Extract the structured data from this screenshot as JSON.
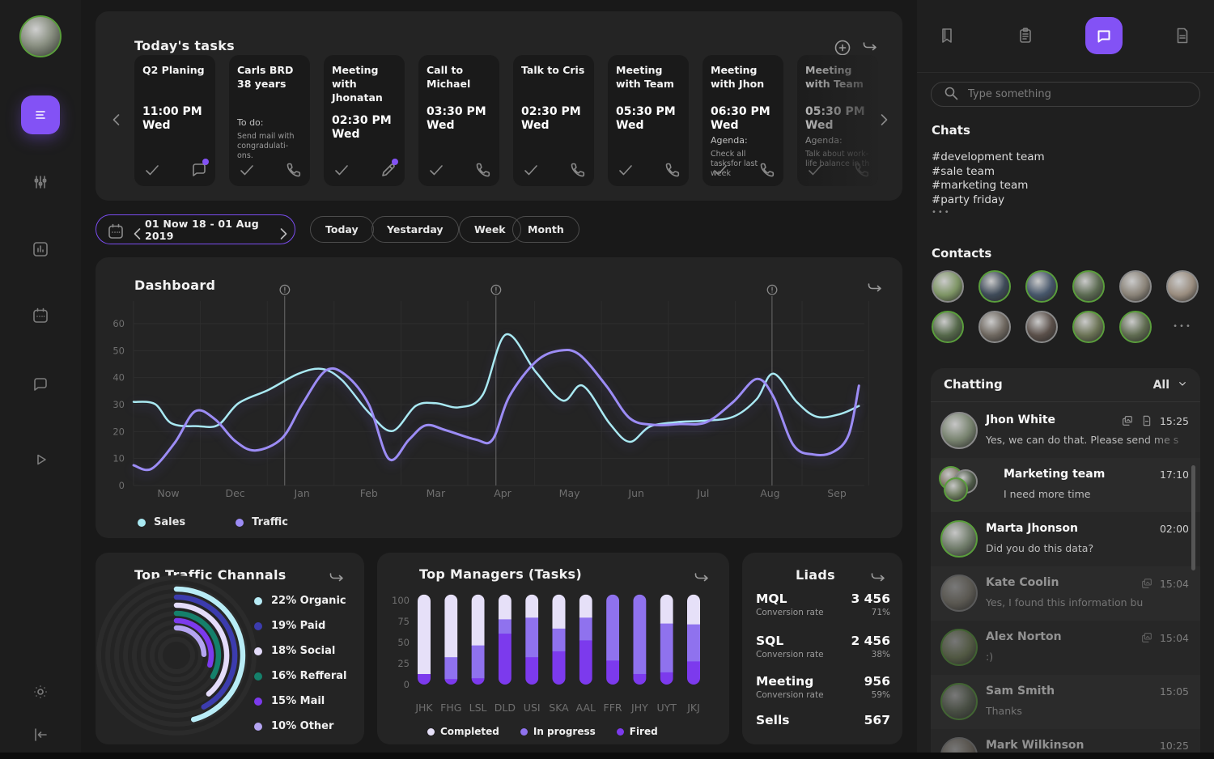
{
  "colors": {
    "accent": "#8352f5",
    "sales": "#a9e9f2",
    "traffic": "#9c8cf5",
    "completed": "#e6e0f8",
    "in_progress": "#8f72ee",
    "fired": "#7c3aed"
  },
  "sidebar": {
    "items": [
      {
        "icon": "menu",
        "active": true
      },
      {
        "icon": "sliders",
        "active": false
      },
      {
        "icon": "bar-chart",
        "active": false
      },
      {
        "icon": "calendar",
        "active": false
      },
      {
        "icon": "chat",
        "active": false
      },
      {
        "icon": "play",
        "active": false
      }
    ],
    "bottom_items": [
      {
        "icon": "brightness"
      },
      {
        "icon": "logout"
      }
    ]
  },
  "tasks": {
    "title": "Today's tasks",
    "cards": [
      {
        "title": "Q2 Planing",
        "time": "11:00 PM",
        "day": "Wed",
        "note_label": "",
        "note": "",
        "action_icon": "chat",
        "badge": true,
        "faded": false
      },
      {
        "title": "Carls BRD 38 years",
        "time": "",
        "day": "",
        "note_label": "To do:",
        "note": "Send mail with congradulati-ons.",
        "action_icon": "phone",
        "badge": false,
        "faded": false
      },
      {
        "title": "Meeting with Jhonatan",
        "time": "02:30 PM",
        "day": "Wed",
        "note_label": "",
        "note": "",
        "action_icon": "pencil",
        "badge": true,
        "faded": false
      },
      {
        "title": "Call to Michael",
        "time": "03:30 PM",
        "day": "Wed",
        "note_label": "",
        "note": "",
        "action_icon": "phone",
        "badge": false,
        "faded": false
      },
      {
        "title": "Talk to Cris",
        "time": "02:30 PM",
        "day": "Wed",
        "note_label": "",
        "note": "",
        "action_icon": "phone",
        "badge": false,
        "faded": false
      },
      {
        "title": "Meeting with Team",
        "time": "05:30 PM",
        "day": "Wed",
        "note_label": "",
        "note": "",
        "action_icon": "phone",
        "badge": false,
        "faded": false
      },
      {
        "title": "Meeting with Jhon",
        "time": "06:30 PM",
        "day": "Wed",
        "note_label": "Agenda:",
        "note": "Check all tasksfor last week",
        "action_icon": "phone",
        "badge": false,
        "faded": false
      },
      {
        "title": "Meeting with Team",
        "time": "05:30 PM",
        "day": "Wed",
        "note_label": "Agenda:",
        "note": "Talk about work-life balance in th",
        "action_icon": "phone",
        "badge": false,
        "faded": true
      }
    ]
  },
  "date_bar": {
    "range": "01 Now 18 - 01 Aug 2019",
    "filters": [
      "Today",
      "Yestarday",
      "Week",
      "Month"
    ]
  },
  "chart_data": [
    {
      "type": "line",
      "title": "Dashboard",
      "x_labels": [
        "Now",
        "Dec",
        "Jan",
        "Feb",
        "Mar",
        "Apr",
        "May",
        "Jun",
        "Jul",
        "Aug",
        "Sep"
      ],
      "ylim": [
        0,
        60
      ],
      "yticks": [
        0,
        10,
        20,
        30,
        40,
        50,
        60
      ],
      "grid": true,
      "legend_position": "bottom",
      "alert_markers_x": [
        1.74,
        4.9,
        9.03
      ],
      "series": [
        {
          "name": "Sales",
          "color": "#a9e9f2",
          "points": [
            [
              -0.52,
              31
            ],
            [
              -0.2,
              30.2
            ],
            [
              0.05,
              23
            ],
            [
              0.45,
              22
            ],
            [
              0.75,
              22.5
            ],
            [
              1.05,
              30.5
            ],
            [
              1.5,
              35.5
            ],
            [
              1.95,
              41.5
            ],
            [
              2.3,
              43.2
            ],
            [
              2.6,
              39
            ],
            [
              3.0,
              27
            ],
            [
              3.35,
              20.2
            ],
            [
              3.7,
              29.5
            ],
            [
              4.0,
              30.5
            ],
            [
              4.35,
              29
            ],
            [
              4.7,
              33.5
            ],
            [
              5.05,
              56
            ],
            [
              5.5,
              42
            ],
            [
              5.9,
              31.5
            ],
            [
              6.2,
              37
            ],
            [
              6.6,
              23
            ],
            [
              6.9,
              16.2
            ],
            [
              7.2,
              21.8
            ],
            [
              7.6,
              23.5
            ],
            [
              8.0,
              24
            ],
            [
              8.45,
              25.5
            ],
            [
              8.8,
              32
            ],
            [
              9.05,
              41.5
            ],
            [
              9.4,
              31
            ],
            [
              9.7,
              25.5
            ],
            [
              10.05,
              26.5
            ],
            [
              10.33,
              29.5
            ]
          ]
        },
        {
          "name": "Traffic",
          "color": "#9c8cf5",
          "points": [
            [
              -0.52,
              7.5
            ],
            [
              -0.25,
              6.2
            ],
            [
              0.1,
              16
            ],
            [
              0.4,
              27.5
            ],
            [
              0.7,
              24.5
            ],
            [
              1.0,
              16.5
            ],
            [
              1.3,
              13
            ],
            [
              1.7,
              17.5
            ],
            [
              2.0,
              30
            ],
            [
              2.35,
              42.5
            ],
            [
              2.65,
              41
            ],
            [
              3.0,
              30
            ],
            [
              3.3,
              9.8
            ],
            [
              3.6,
              17
            ],
            [
              3.85,
              22.3
            ],
            [
              4.15,
              20.5
            ],
            [
              4.6,
              17
            ],
            [
              4.85,
              17
            ],
            [
              5.1,
              33
            ],
            [
              5.5,
              46
            ],
            [
              5.85,
              50
            ],
            [
              6.15,
              48.5
            ],
            [
              6.55,
              37
            ],
            [
              6.9,
              25
            ],
            [
              7.25,
              22.5
            ],
            [
              7.65,
              22.8
            ],
            [
              8.05,
              23.5
            ],
            [
              8.45,
              31
            ],
            [
              8.8,
              39.5
            ],
            [
              9.05,
              33
            ],
            [
              9.35,
              15
            ],
            [
              9.65,
              11.5
            ],
            [
              9.95,
              12.5
            ],
            [
              10.18,
              19
            ],
            [
              10.33,
              37
            ]
          ]
        }
      ]
    },
    {
      "type": "radial-bars",
      "title": "Top Traffic Channals",
      "items": [
        {
          "label": "22% Organic",
          "pct": 22,
          "color": "#b8ecf6",
          "sweep": 165
        },
        {
          "label": "19% Paid",
          "pct": 19,
          "color": "#3c3cae",
          "sweep": 152
        },
        {
          "label": "18% Social",
          "pct": 18,
          "color": "#e4dcfa",
          "sweep": 140
        },
        {
          "label": "16% Refferal",
          "pct": 16,
          "color": "#15806b",
          "sweep": 120
        },
        {
          "label": "15% Mail",
          "pct": 15,
          "color": "#7c3aed",
          "sweep": 106
        },
        {
          "label": "10% Other",
          "pct": 10,
          "color": "#b4a4f1",
          "sweep": 88
        }
      ]
    },
    {
      "type": "stacked-bar",
      "title": "Top Managers (Tasks)",
      "categories": [
        "JHK",
        "FHG",
        "LSL",
        "DLD",
        "USI",
        "SKA",
        "AAL",
        "FFR",
        "JHY",
        "UYT",
        "JKJ"
      ],
      "yticks": [
        0,
        25,
        50,
        75,
        100
      ],
      "bar_total": 107,
      "series": [
        {
          "name": "Fired",
          "color": "#7c3aed",
          "values": [
            13,
            7,
            8,
            61,
            33,
            40,
            53,
            29,
            13,
            15,
            28
          ]
        },
        {
          "name": "In progress",
          "color": "#8f72ee",
          "values": [
            0,
            26,
            39,
            17,
            47,
            27,
            27,
            78,
            94,
            58,
            44
          ]
        },
        {
          "name": "Completed",
          "color": "#e6e0f8",
          "values": [
            94,
            74,
            60,
            29,
            27,
            40,
            27,
            0,
            0,
            34,
            35
          ]
        }
      ]
    }
  ],
  "leads": {
    "title": "Liads",
    "rows": [
      {
        "label": "MQL",
        "value": "3 456",
        "sub_label": "Conversion rate",
        "sub_value": "71%"
      },
      {
        "label": "SQL",
        "value": "2 456",
        "sub_label": "Conversion rate",
        "sub_value": "38%"
      },
      {
        "label": "Meeting",
        "value": "956",
        "sub_label": "Conversion rate",
        "sub_value": "59%"
      },
      {
        "label": "Sells",
        "value": "567",
        "sub_label": "",
        "sub_value": ""
      }
    ]
  },
  "right_panel": {
    "tabs": [
      {
        "icon": "bookmark",
        "active": false
      },
      {
        "icon": "clipboard",
        "active": false
      },
      {
        "icon": "chat-bubble",
        "active": true
      },
      {
        "icon": "document",
        "active": false
      }
    ],
    "search_placeholder": "Type something",
    "chats_title": "Chats",
    "channels": [
      "#development team",
      "#sale team",
      "#marketing team",
      "#party friday"
    ],
    "more_dots": "•••",
    "contacts_title": "Contacts",
    "contacts": [
      {
        "ring": "gray",
        "tone": "#7d9464"
      },
      {
        "ring": "green",
        "tone": "#3e4a58"
      },
      {
        "ring": "green",
        "tone": "#46566a"
      },
      {
        "ring": "green",
        "tone": "#5c6b52"
      },
      {
        "ring": "gray",
        "tone": "#8a8378"
      },
      {
        "ring": "gray",
        "tone": "#9a8d7f"
      },
      {
        "ring": "green",
        "tone": "#55684a"
      },
      {
        "ring": "gray",
        "tone": "#6e675f"
      },
      {
        "ring": "gray",
        "tone": "#5a4f49"
      },
      {
        "ring": "green",
        "tone": "#6b7355"
      },
      {
        "ring": "green",
        "tone": "#5f6b50"
      }
    ],
    "chatting": {
      "title": "Chatting",
      "filter": "All",
      "items": [
        {
          "name": "Jhon White",
          "time": "15:25",
          "message": "Yes, we can do that. Please send me s",
          "attachments": [
            "gallery",
            "file"
          ],
          "ring": "gray",
          "tone": "#77826e",
          "group": false,
          "dim": false,
          "fade": true
        },
        {
          "name": "Marketing team",
          "time": "17:10",
          "message": "I need more time",
          "attachments": [],
          "ring": "green",
          "tone": "#6b7a5c",
          "group": true,
          "dim": false,
          "fade": false
        },
        {
          "name": "Marta Jhonson",
          "time": "02:00",
          "message": "Did you do this data?",
          "attachments": [],
          "ring": "green",
          "tone": "#6e7a68",
          "group": false,
          "dim": false,
          "fade": false
        },
        {
          "name": "Kate Coolin",
          "time": "15:04",
          "message": "Yes, I found this information bu",
          "attachments": [
            "gallery"
          ],
          "ring": "gray",
          "tone": "#8a8578",
          "group": false,
          "dim": true,
          "fade": false
        },
        {
          "name": "Alex Norton",
          "time": "15:04",
          "message": ":)",
          "attachments": [
            "gallery"
          ],
          "ring": "green",
          "tone": "#7c8a5f",
          "group": false,
          "dim": true,
          "fade": false
        },
        {
          "name": "Sam Smith",
          "time": "15:05",
          "message": "Thanks",
          "attachments": [],
          "ring": "green",
          "tone": "#64705a",
          "group": false,
          "dim": true,
          "fade": false
        },
        {
          "name": "Mark Wilkinson",
          "time": "10:25",
          "message": "",
          "attachments": [],
          "ring": "gray",
          "tone": "#887f72",
          "group": false,
          "dim": true,
          "fade": false
        }
      ]
    }
  }
}
